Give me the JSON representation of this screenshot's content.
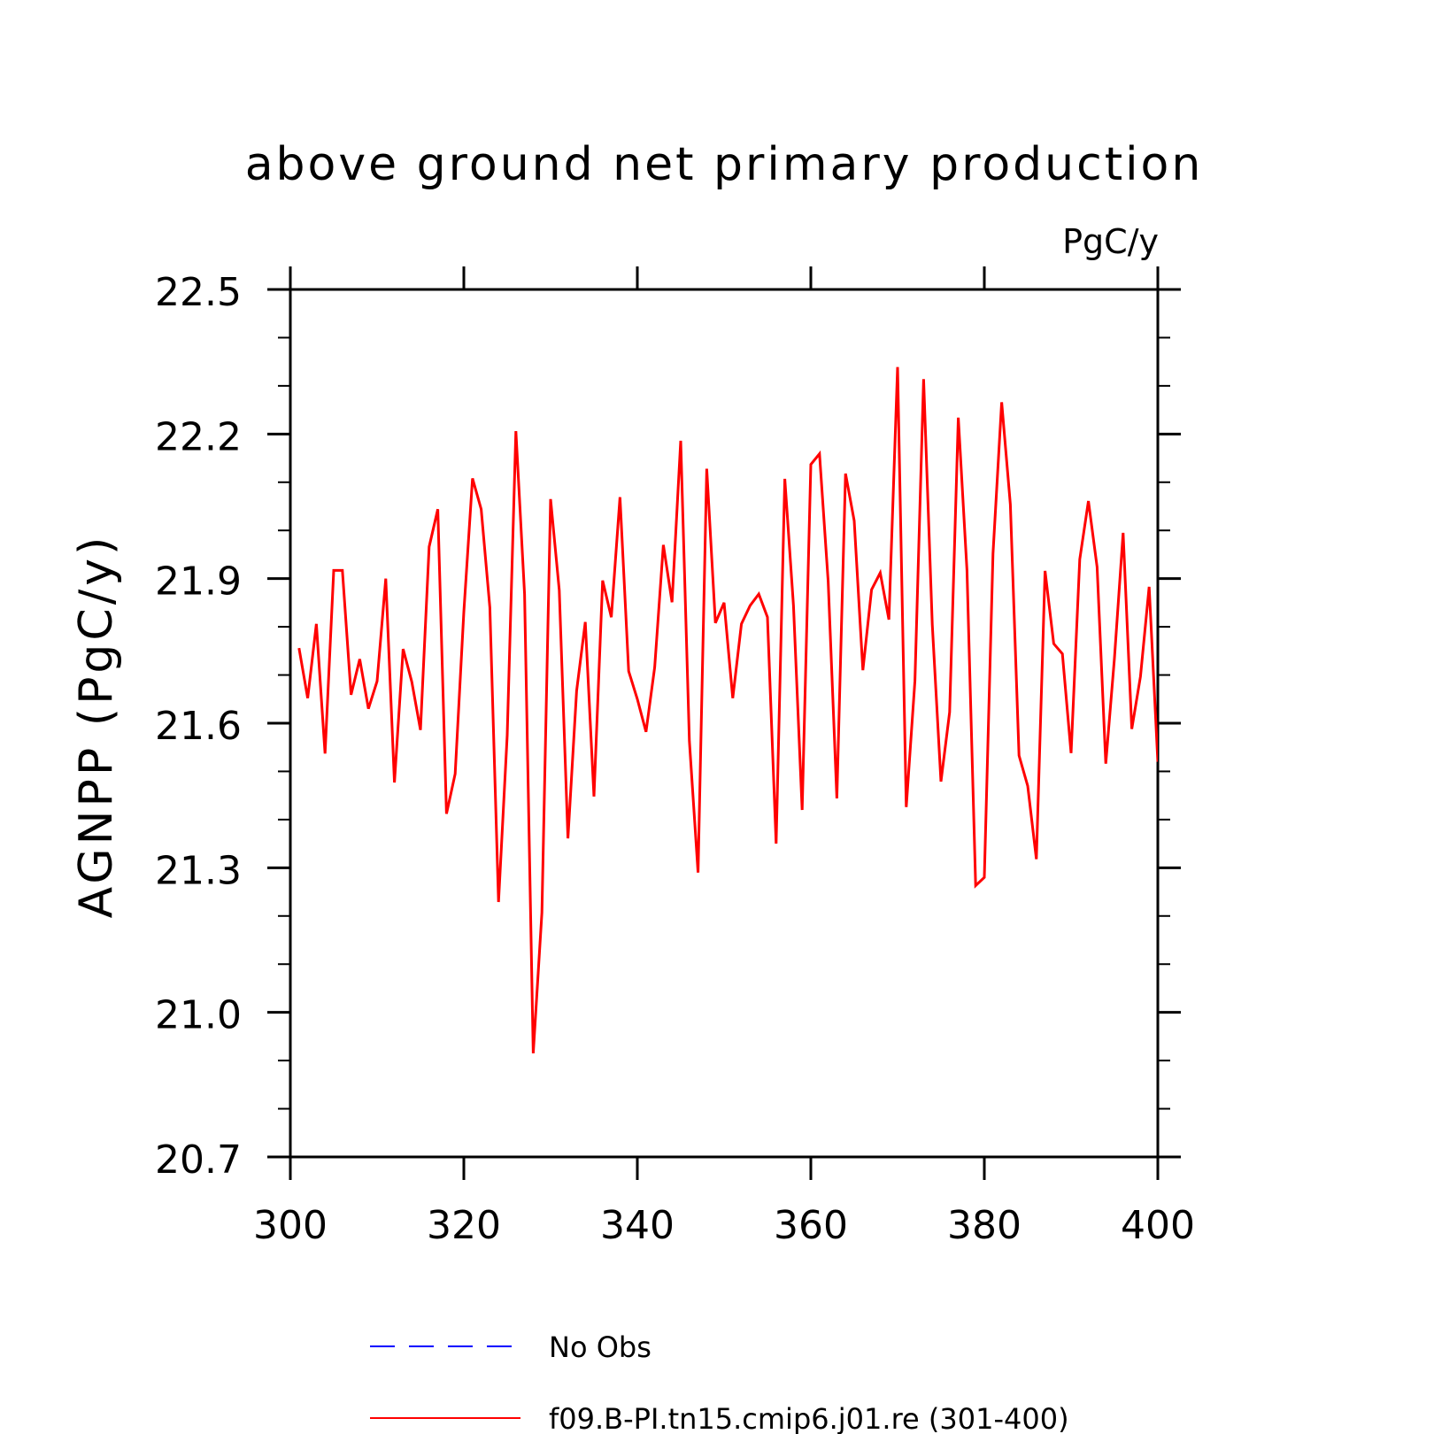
{
  "chart_data": {
    "type": "line",
    "title": "above ground net primary production",
    "units_label": "PgC/y",
    "ylabel": "AGNPP  (PgC/y)",
    "xlabel": "",
    "xlim": [
      301,
      400
    ],
    "ylim": [
      20.7,
      22.5
    ],
    "x_ticks": [
      "300",
      "320",
      "340",
      "360",
      "380",
      "400"
    ],
    "y_ticks": [
      "20.7",
      "21.0",
      "21.3",
      "21.6",
      "21.9",
      "22.2",
      "22.5"
    ],
    "legend": [
      {
        "label": "No Obs",
        "color": "#0000ff",
        "style": "dashed"
      },
      {
        "label": "f09.B-PI.tn15.cmip6.j01.re (301-400)",
        "color": "#ff0000",
        "style": "solid"
      }
    ],
    "series": [
      {
        "name": "f09.B-PI.tn15.cmip6.j01.re (301-400)",
        "color": "#ff0000",
        "x": [
          301,
          302,
          303,
          304,
          305,
          306,
          307,
          308,
          309,
          310,
          311,
          312,
          313,
          314,
          315,
          316,
          317,
          318,
          319,
          320,
          321,
          322,
          323,
          324,
          325,
          326,
          327,
          328,
          329,
          330,
          331,
          332,
          333,
          334,
          335,
          336,
          337,
          338,
          339,
          340,
          341,
          342,
          343,
          344,
          345,
          346,
          347,
          348,
          349,
          350,
          351,
          352,
          353,
          354,
          355,
          356,
          357,
          358,
          359,
          360,
          361,
          362,
          363,
          364,
          365,
          366,
          367,
          368,
          369,
          370,
          371,
          372,
          373,
          374,
          375,
          376,
          377,
          378,
          379,
          380,
          381,
          382,
          383,
          384,
          385,
          386,
          387,
          388,
          389,
          390,
          391,
          392,
          393,
          394,
          395,
          396,
          397,
          398,
          399,
          400
        ],
        "values": [
          21.756,
          21.652,
          21.806,
          21.537,
          21.917,
          21.917,
          21.659,
          21.733,
          21.63,
          21.687,
          21.9,
          21.477,
          21.754,
          21.686,
          21.586,
          21.966,
          22.044,
          21.412,
          21.495,
          21.831,
          22.108,
          22.044,
          21.84,
          21.229,
          21.575,
          22.206,
          21.868,
          20.915,
          21.207,
          22.065,
          21.876,
          21.361,
          21.667,
          21.81,
          21.448,
          21.896,
          21.82,
          22.069,
          21.708,
          21.65,
          21.582,
          21.716,
          21.97,
          21.851,
          22.186,
          21.563,
          21.29,
          22.128,
          21.808,
          21.85,
          21.652,
          21.806,
          21.844,
          21.868,
          21.82,
          21.35,
          22.107,
          21.844,
          21.42,
          22.137,
          22.159,
          21.894,
          21.444,
          22.118,
          22.02,
          21.71,
          21.877,
          21.912,
          21.815,
          22.339,
          21.426,
          21.688,
          22.314,
          21.805,
          21.479,
          21.623,
          22.234,
          21.917,
          21.263,
          21.28,
          21.952,
          22.266,
          22.054,
          21.533,
          21.47,
          21.318,
          21.916,
          21.765,
          21.744,
          21.538,
          21.94,
          22.061,
          21.924,
          21.516,
          21.735,
          21.995,
          21.588,
          21.697,
          21.883,
          21.52
        ]
      }
    ]
  }
}
